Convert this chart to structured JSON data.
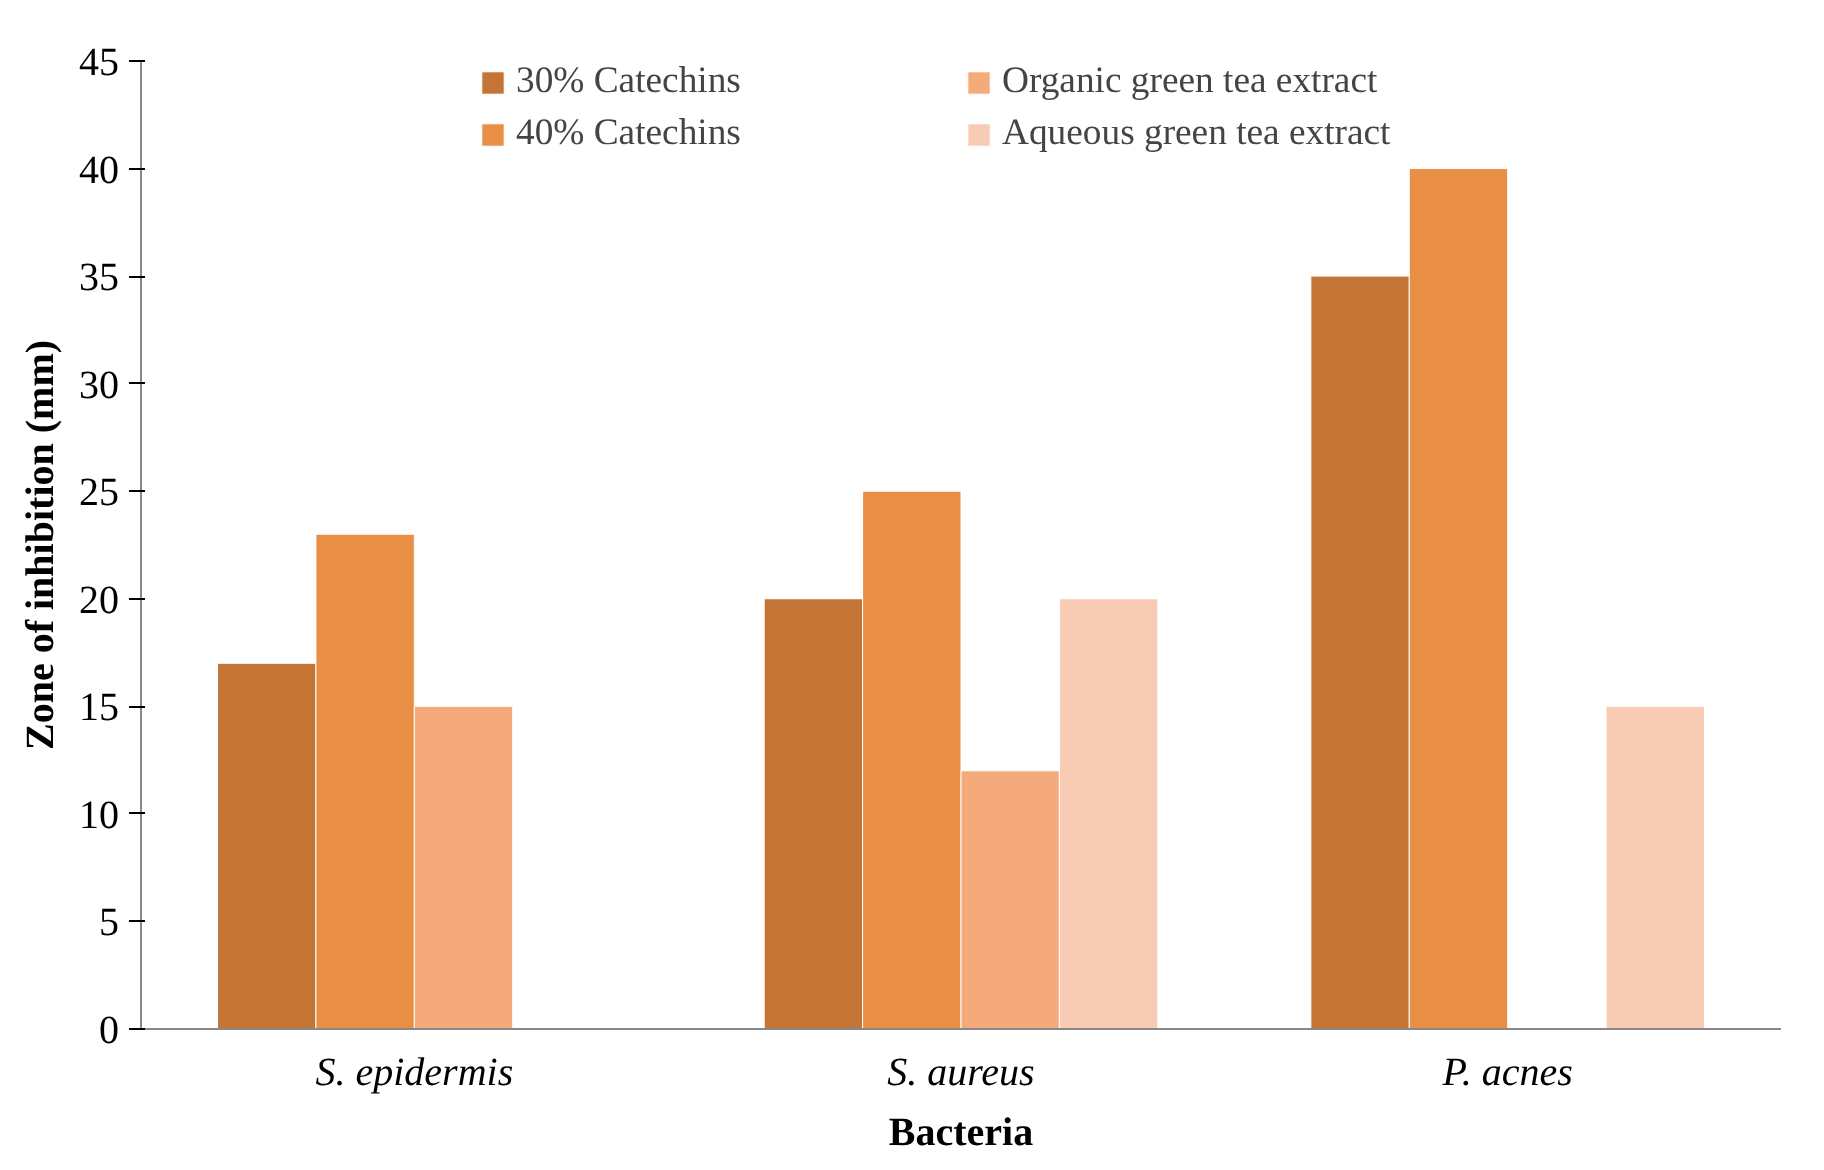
{
  "chart_data": {
    "type": "bar",
    "xlabel": "Bacteria",
    "ylabel": "Zone of inhibition (mm)",
    "categories": [
      "S. epidermis",
      "S. aureus",
      "P. acnes"
    ],
    "series": [
      {
        "name": "30% Catechins",
        "color": "#c47535",
        "values": [
          17,
          20,
          35
        ]
      },
      {
        "name": "40% Catechins",
        "color": "#e98f45",
        "values": [
          23,
          25,
          40
        ]
      },
      {
        "name": "Organic green tea extract",
        "color": "#f5aa7b",
        "values": [
          15,
          12,
          null
        ]
      },
      {
        "name": "Aqueous green tea extract",
        "color": "#f8cbb4",
        "values": [
          null,
          20,
          15
        ]
      }
    ],
    "ylim": [
      0,
      45
    ],
    "yticks": [
      0,
      5,
      10,
      15,
      20,
      25,
      30,
      35,
      40,
      45
    ],
    "grid": false,
    "legend": "top"
  }
}
